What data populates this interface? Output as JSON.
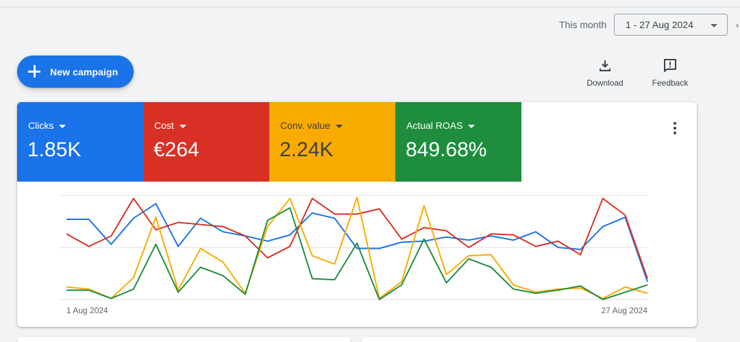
{
  "header": {
    "period_label": "This month",
    "date_range": "1 - 27 Aug 2024"
  },
  "actions": {
    "new_campaign": "New campaign",
    "download": "Download",
    "feedback": "Feedback"
  },
  "metrics": [
    {
      "name": "Clicks",
      "value": "1.85K",
      "color": "#1a73e8"
    },
    {
      "name": "Cost",
      "value": "€264",
      "color": "#d93025"
    },
    {
      "name": "Conv. value",
      "value": "2.24K",
      "color": "#f9ab00"
    },
    {
      "name": "Actual ROAS",
      "value": "849.68%",
      "color": "#1e8e3e"
    }
  ],
  "chart_data": {
    "type": "line",
    "x": [
      "1 Aug 2024",
      "2 Aug 2024",
      "3 Aug 2024",
      "4 Aug 2024",
      "5 Aug 2024",
      "6 Aug 2024",
      "7 Aug 2024",
      "8 Aug 2024",
      "9 Aug 2024",
      "10 Aug 2024",
      "11 Aug 2024",
      "12 Aug 2024",
      "13 Aug 2024",
      "14 Aug 2024",
      "15 Aug 2024",
      "16 Aug 2024",
      "17 Aug 2024",
      "18 Aug 2024",
      "19 Aug 2024",
      "20 Aug 2024",
      "21 Aug 2024",
      "22 Aug 2024",
      "23 Aug 2024",
      "24 Aug 2024",
      "25 Aug 2024",
      "26 Aug 2024",
      "27 Aug 2024"
    ],
    "x_tick_labels": [
      "1 Aug 2024",
      "27 Aug 2024"
    ],
    "ylim": [
      0,
      100
    ],
    "grid": true,
    "series": [
      {
        "color": "#1a73e8",
        "values": [
          77,
          77,
          53,
          78,
          92,
          51,
          78,
          65,
          61,
          56,
          62,
          83,
          78,
          49,
          49,
          55,
          56,
          60,
          57,
          61,
          57,
          65,
          50,
          48,
          70,
          79,
          17
        ]
      },
      {
        "color": "#d93025",
        "values": [
          63,
          51,
          61,
          97,
          67,
          74,
          72,
          70,
          61,
          40,
          51,
          97,
          82,
          82,
          87,
          58,
          69,
          66,
          50,
          63,
          62,
          51,
          56,
          43,
          97,
          81,
          20
        ]
      },
      {
        "color": "#f9ab00",
        "values": [
          12,
          10,
          1,
          21,
          79,
          9,
          49,
          36,
          6,
          70,
          97,
          42,
          34,
          98,
          1,
          17,
          90,
          24,
          42,
          43,
          14,
          7,
          10,
          11,
          1,
          12,
          6
        ]
      },
      {
        "color": "#1e8e3e",
        "values": [
          9,
          9,
          1,
          10,
          53,
          7,
          31,
          23,
          5,
          76,
          88,
          20,
          19,
          54,
          0,
          14,
          58,
          16,
          39,
          31,
          10,
          6,
          9,
          13,
          0,
          7,
          14
        ]
      }
    ]
  }
}
